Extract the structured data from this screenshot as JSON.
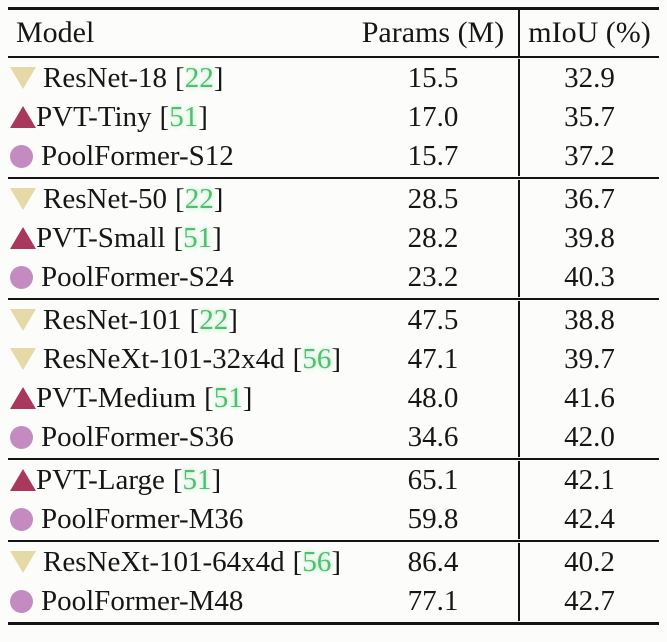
{
  "table": {
    "columns": [
      "Model",
      "Params (M)",
      "mIoU (%)"
    ],
    "cite_open": "[",
    "cite_close": "]",
    "groups": [
      {
        "rows": [
          {
            "icon": "triangle-down",
            "model": "ResNet-18",
            "cite": "22",
            "params": "15.5",
            "miou": "32.9"
          },
          {
            "icon": "triangle-up",
            "model": "PVT-Tiny",
            "cite": "51",
            "params": "17.0",
            "miou": "35.7"
          },
          {
            "icon": "circle",
            "model": "PoolFormer-S12",
            "cite": "",
            "params": "15.7",
            "miou": "37.2"
          }
        ]
      },
      {
        "rows": [
          {
            "icon": "triangle-down",
            "model": "ResNet-50",
            "cite": "22",
            "params": "28.5",
            "miou": "36.7"
          },
          {
            "icon": "triangle-up",
            "model": "PVT-Small",
            "cite": "51",
            "params": "28.2",
            "miou": "39.8"
          },
          {
            "icon": "circle",
            "model": "PoolFormer-S24",
            "cite": "",
            "params": "23.2",
            "miou": "40.3"
          }
        ]
      },
      {
        "rows": [
          {
            "icon": "triangle-down",
            "model": "ResNet-101",
            "cite": "22",
            "params": "47.5",
            "miou": "38.8"
          },
          {
            "icon": "triangle-down",
            "model": "ResNeXt-101-32x4d",
            "cite": "56",
            "params": "47.1",
            "miou": "39.7"
          },
          {
            "icon": "triangle-up",
            "model": "PVT-Medium",
            "cite": "51",
            "params": "48.0",
            "miou": "41.6"
          },
          {
            "icon": "circle",
            "model": "PoolFormer-S36",
            "cite": "",
            "params": "34.6",
            "miou": "42.0"
          }
        ]
      },
      {
        "rows": [
          {
            "icon": "triangle-up",
            "model": "PVT-Large",
            "cite": "51",
            "params": "65.1",
            "miou": "42.1"
          },
          {
            "icon": "circle",
            "model": "PoolFormer-M36",
            "cite": "",
            "params": "59.8",
            "miou": "42.4"
          }
        ]
      },
      {
        "rows": [
          {
            "icon": "triangle-down",
            "model": "ResNeXt-101-64x4d",
            "cite": "56",
            "params": "86.4",
            "miou": "40.2"
          },
          {
            "icon": "circle",
            "model": "PoolFormer-M48",
            "cite": "",
            "params": "77.1",
            "miou": "42.7"
          }
        ]
      }
    ]
  },
  "colors": {
    "triangle_down": "#e6d9a8",
    "triangle_up": "#a8395c",
    "circle": "#c48bc1",
    "cite_green": "#52bd71",
    "rule": "#141414",
    "bg": "#fcfcfa",
    "text": "#161616"
  }
}
